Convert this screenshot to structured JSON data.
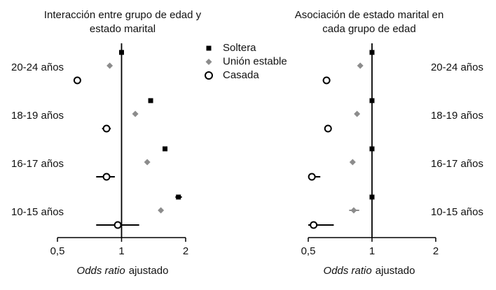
{
  "chart_data": [
    {
      "type": "forest",
      "title": [
        "Interacción entre grupo de edad y",
        "estado marital"
      ],
      "xlabel": [
        {
          "text": "Odds ratio",
          "italic": true
        },
        {
          "text": "ajustado"
        }
      ],
      "categories": [
        "20-24 años",
        "18-19 años",
        "16-17 años",
        "10-15 años"
      ],
      "label_side": "left",
      "log_scale": true,
      "xlim": [
        0.5,
        2
      ],
      "xticks": [
        {
          "value": 0.5,
          "label": "0,5"
        },
        1,
        2
      ],
      "reference": 1,
      "legend": true,
      "series": [
        {
          "name": "Soltera",
          "marker": "square",
          "color": "#000000",
          "values": [
            1.0,
            1.37,
            1.6,
            1.85
          ],
          "ci": [
            null,
            null,
            null,
            [
              1.79,
              1.92
            ]
          ]
        },
        {
          "name": "Unión estable",
          "marker": "diamond",
          "color": "#8c8c8c",
          "values": [
            0.88,
            1.16,
            1.32,
            1.53
          ],
          "ci": [
            null,
            null,
            null,
            null
          ]
        },
        {
          "name": "Casada",
          "marker": "circle",
          "color": "#000000",
          "values": [
            0.62,
            0.85,
            0.85,
            0.96
          ],
          "ci": [
            null,
            [
              0.81,
              0.89
            ],
            [
              0.76,
              0.93
            ],
            [
              0.76,
              1.21
            ]
          ]
        }
      ]
    },
    {
      "type": "forest",
      "title": [
        "Asociación de estado marital en",
        "cada grupo de edad"
      ],
      "xlabel": [
        {
          "text": "Odds ratio",
          "italic": true
        },
        {
          "text": "ajustado"
        }
      ],
      "categories": [
        "20-24 años",
        "18-19 años",
        "16-17 años",
        "10-15 años"
      ],
      "label_side": "right",
      "log_scale": true,
      "xlim": [
        0.5,
        2
      ],
      "xticks": [
        {
          "value": 0.5,
          "label": "0,5"
        },
        1,
        2
      ],
      "reference": 1,
      "legend": false,
      "series": [
        {
          "marker": "square",
          "color": "#000000",
          "values": [
            1,
            1,
            1,
            1
          ],
          "ci": [
            null,
            null,
            null,
            null
          ]
        },
        {
          "marker": "diamond",
          "color": "#8c8c8c",
          "values": [
            0.88,
            0.85,
            0.81,
            0.82
          ],
          "ci": [
            null,
            null,
            null,
            [
              0.78,
              0.87
            ]
          ]
        },
        {
          "marker": "circle",
          "color": "#000000",
          "values": [
            0.61,
            0.62,
            0.52,
            0.53
          ],
          "ci": [
            null,
            [
              0.6,
              0.64
            ],
            [
              0.5,
              0.57
            ],
            [
              0.5,
              0.66
            ]
          ]
        }
      ]
    }
  ]
}
